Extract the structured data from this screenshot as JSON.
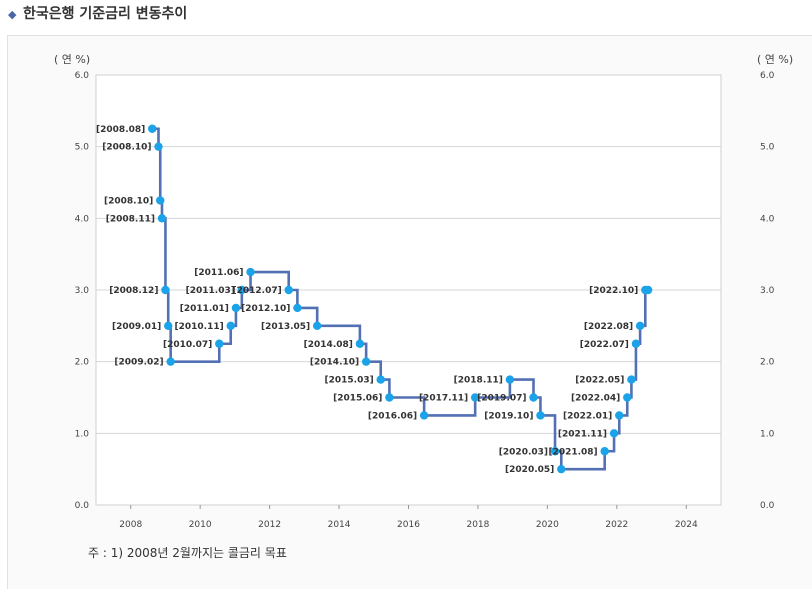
{
  "title": "한국은행 기준금리 변동추이",
  "note": "주 : 1) 2008년 2월까지는 콜금리 목표",
  "colors": {
    "line": "#5470b4",
    "marker": "#1aa3e8",
    "grid": "#d6d6d6",
    "title_marker": "#4a66a8"
  },
  "chart_data": {
    "type": "line",
    "title": "한국은행 기준금리 변동추이",
    "y_unit_left": "( 연 %)",
    "y_unit_right": "( 연 %)",
    "ylim": [
      0,
      6
    ],
    "xlim": [
      2007,
      2025
    ],
    "y_ticks": [
      "0.0",
      "1.0",
      "2.0",
      "3.0",
      "4.0",
      "5.0",
      "6.0"
    ],
    "x_ticks": [
      "2008",
      "2010",
      "2012",
      "2014",
      "2016",
      "2018",
      "2020",
      "2022",
      "2024"
    ],
    "grid": "horizontal",
    "series": [
      {
        "step": "after",
        "points": [
          {
            "label": "[2008.08]",
            "x": 2008.62,
            "y": 5.25
          },
          {
            "label": "[2008.10]",
            "x": 2008.8,
            "y": 5.0
          },
          {
            "label": "[2008.10]",
            "x": 2008.85,
            "y": 4.25
          },
          {
            "label": "[2008.11]",
            "x": 2008.9,
            "y": 4.0
          },
          {
            "label": "[2008.12]",
            "x": 2009.0,
            "y": 3.0
          },
          {
            "label": "[2009.01]",
            "x": 2009.08,
            "y": 2.5
          },
          {
            "label": "[2009.02]",
            "x": 2009.15,
            "y": 2.0
          },
          {
            "label": "[2010.07]",
            "x": 2010.55,
            "y": 2.25
          },
          {
            "label": "[2010.11]",
            "x": 2010.88,
            "y": 2.5
          },
          {
            "label": "[2011.01]",
            "x": 2011.03,
            "y": 2.75
          },
          {
            "label": "[2011.03]",
            "x": 2011.2,
            "y": 3.0
          },
          {
            "label": "[2011.06]",
            "x": 2011.45,
            "y": 3.25
          },
          {
            "label": "[2012.07]",
            "x": 2012.55,
            "y": 3.0
          },
          {
            "label": "[2012.10]",
            "x": 2012.8,
            "y": 2.75
          },
          {
            "label": "[2013.05]",
            "x": 2013.37,
            "y": 2.5
          },
          {
            "label": "[2014.08]",
            "x": 2014.6,
            "y": 2.25
          },
          {
            "label": "[2014.10]",
            "x": 2014.78,
            "y": 2.0
          },
          {
            "label": "[2015.03]",
            "x": 2015.2,
            "y": 1.75
          },
          {
            "label": "[2015.06]",
            "x": 2015.45,
            "y": 1.5
          },
          {
            "label": "[2016.06]",
            "x": 2016.45,
            "y": 1.25
          },
          {
            "label": "[2017.11]",
            "x": 2017.92,
            "y": 1.5
          },
          {
            "label": "[2018.11]",
            "x": 2018.92,
            "y": 1.75
          },
          {
            "label": "[2019.07]",
            "x": 2019.6,
            "y": 1.5
          },
          {
            "label": "[2019.10]",
            "x": 2019.8,
            "y": 1.25
          },
          {
            "label": "[2020.03]",
            "x": 2020.22,
            "y": 0.75
          },
          {
            "label": "[2020.05]",
            "x": 2020.4,
            "y": 0.5
          },
          {
            "label": "[2021.08]",
            "x": 2021.65,
            "y": 0.75
          },
          {
            "label": "[2021.11]",
            "x": 2021.92,
            "y": 1.0
          },
          {
            "label": "[2022.01]",
            "x": 2022.07,
            "y": 1.25
          },
          {
            "label": "[2022.04]",
            "x": 2022.3,
            "y": 1.5
          },
          {
            "label": "[2022.05]",
            "x": 2022.42,
            "y": 1.75
          },
          {
            "label": "[2022.07]",
            "x": 2022.55,
            "y": 2.25
          },
          {
            "label": "[2022.08]",
            "x": 2022.67,
            "y": 2.5
          },
          {
            "label": "[2022.10]",
            "x": 2022.82,
            "y": 3.0
          },
          {
            "label": "",
            "x": 2022.9,
            "y": 3.0
          }
        ]
      }
    ]
  }
}
